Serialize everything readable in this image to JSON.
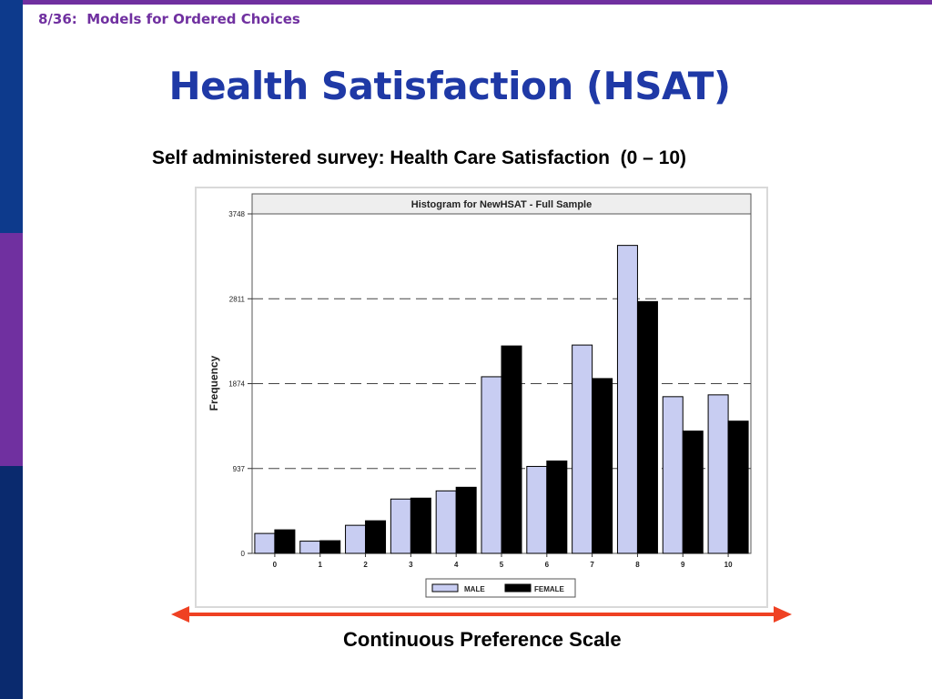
{
  "slide": {
    "header": "8/36:  Models for Ordered Choices",
    "title": "Health Satisfaction (HSAT)",
    "subtitle": "Self administered survey: Health Care Satisfaction  (0 – 10)",
    "bottom_label": "Continuous Preference Scale"
  },
  "colors": {
    "sidebar_top": "#0d3a8c",
    "sidebar_mid": "#7030a0",
    "sidebar_bottom": "#0a2a6e",
    "title": "#1f39a6",
    "header": "#7030a0",
    "arrow": "#ef4123",
    "male_bar": "#c8cdf2",
    "female_bar": "#000000"
  },
  "chart_data": {
    "type": "bar",
    "title": "Histogram for NewHSAT - Full Sample",
    "ylabel": "Frequency",
    "xlabel": "",
    "categories": [
      "0",
      "1",
      "2",
      "3",
      "4",
      "5",
      "6",
      "7",
      "8",
      "9",
      "10"
    ],
    "ylim": [
      0,
      3748
    ],
    "yticks": [
      "0",
      "937",
      "1874",
      "2811",
      "3748"
    ],
    "grid": "dashed horizontal at 937, 1874, 2811",
    "legend": "bottom-center",
    "series": [
      {
        "name": "MALE",
        "values": [
          220,
          135,
          310,
          600,
          690,
          1950,
          960,
          2300,
          3400,
          1730,
          1750
        ]
      },
      {
        "name": "FEMALE",
        "values": [
          260,
          140,
          360,
          610,
          730,
          2290,
          1020,
          1930,
          2780,
          1350,
          1460
        ]
      }
    ]
  }
}
